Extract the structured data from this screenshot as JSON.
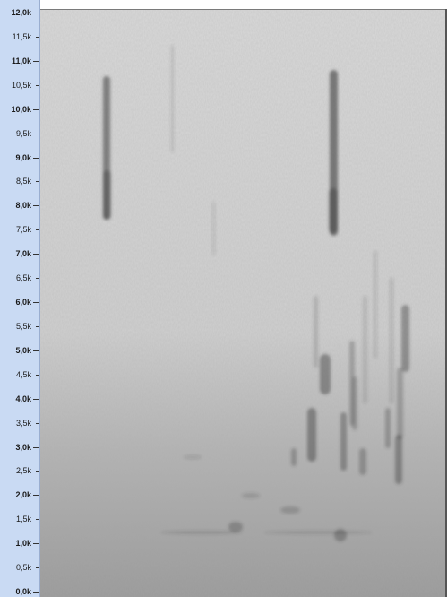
{
  "chart_data": {
    "type": "heatmap",
    "title": "",
    "xlabel": "",
    "ylabel": "",
    "ylim": [
      0,
      12000
    ],
    "y_ticks": [
      {
        "value": 12000,
        "label": "12,0k",
        "major": true
      },
      {
        "value": 11500,
        "label": "11,5k",
        "major": false
      },
      {
        "value": 11000,
        "label": "11,0k",
        "major": true
      },
      {
        "value": 10500,
        "label": "10,5k",
        "major": false
      },
      {
        "value": 10000,
        "label": "10,0k",
        "major": true
      },
      {
        "value": 9500,
        "label": "9,5k",
        "major": false
      },
      {
        "value": 9000,
        "label": "9,0k",
        "major": true
      },
      {
        "value": 8500,
        "label": "8,5k",
        "major": false
      },
      {
        "value": 8000,
        "label": "8,0k",
        "major": true
      },
      {
        "value": 7500,
        "label": "7,5k",
        "major": false
      },
      {
        "value": 7000,
        "label": "7,0k",
        "major": true
      },
      {
        "value": 6500,
        "label": "6,5k",
        "major": false
      },
      {
        "value": 6000,
        "label": "6,0k",
        "major": true
      },
      {
        "value": 5500,
        "label": "5,5k",
        "major": false
      },
      {
        "value": 5000,
        "label": "5,0k",
        "major": true
      },
      {
        "value": 4500,
        "label": "4,5k",
        "major": false
      },
      {
        "value": 4000,
        "label": "4,0k",
        "major": true
      },
      {
        "value": 3500,
        "label": "3,5k",
        "major": false
      },
      {
        "value": 3000,
        "label": "3,0k",
        "major": true
      },
      {
        "value": 2500,
        "label": "2,5k",
        "major": false
      },
      {
        "value": 2000,
        "label": "2,0k",
        "major": true
      },
      {
        "value": 1500,
        "label": "1,5k",
        "major": false
      },
      {
        "value": 1000,
        "label": "1,0k",
        "major": true
      },
      {
        "value": 500,
        "label": "0,5k",
        "major": false
      },
      {
        "value": 0,
        "label": "0,0k",
        "major": true
      }
    ],
    "grid": false,
    "colors": {
      "axis_bg": "#c9daf3",
      "plot_bg": "#d6d6d6",
      "signal": "#3a3a3a"
    }
  }
}
